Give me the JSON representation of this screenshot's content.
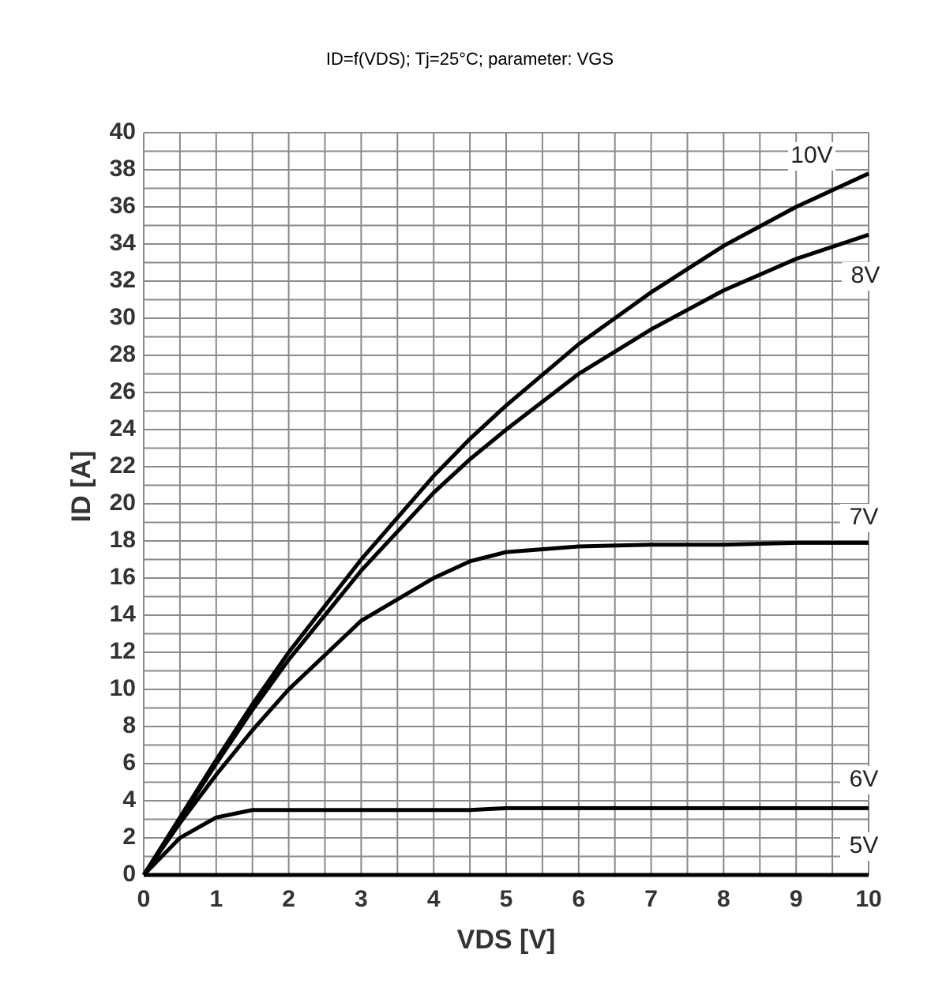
{
  "chart_data": {
    "type": "line",
    "title": "ID=f(VDS); Tj=25°C; parameter: VGS",
    "x_label": "VDS [V]",
    "y_label": "ID [A]",
    "x": [
      0,
      0.5,
      1,
      1.5,
      2,
      3,
      4,
      4.5,
      5,
      6,
      7,
      8,
      9,
      10
    ],
    "series": [
      {
        "name": "10V",
        "color": "#000000",
        "values": [
          0,
          3.1,
          6.2,
          9.2,
          12,
          17,
          21.5,
          23.5,
          25.3,
          28.6,
          31.4,
          33.9,
          36,
          37.8
        ]
      },
      {
        "name": "8V",
        "color": "#000000",
        "values": [
          0,
          3,
          6,
          8.9,
          11.6,
          16.4,
          20.6,
          22.4,
          24,
          27,
          29.4,
          31.5,
          33.2,
          34.5
        ]
      },
      {
        "name": "7V",
        "color": "#000000",
        "values": [
          0,
          2.8,
          5.4,
          7.8,
          10,
          13.7,
          16,
          16.9,
          17.4,
          17.7,
          17.8,
          17.8,
          17.9,
          17.9
        ]
      },
      {
        "name": "6V",
        "color": "#000000",
        "values": [
          0,
          2,
          3.1,
          3.5,
          3.5,
          3.5,
          3.5,
          3.5,
          3.6,
          3.6,
          3.6,
          3.6,
          3.6,
          3.6
        ]
      },
      {
        "name": "5V",
        "color": "#000000",
        "values": [
          0,
          0,
          0,
          0,
          0,
          0,
          0,
          0,
          0,
          0,
          0,
          0,
          0,
          0
        ]
      }
    ],
    "xlim": [
      0,
      10
    ],
    "xticks": [
      0,
      1,
      2,
      3,
      4,
      5,
      6,
      7,
      8,
      9,
      10
    ],
    "ylim": [
      0,
      40
    ],
    "yticks": [
      0,
      2,
      4,
      6,
      8,
      10,
      12,
      14,
      16,
      18,
      20,
      22,
      24,
      26,
      28,
      30,
      32,
      34,
      36,
      38,
      40
    ],
    "grid": true
  }
}
